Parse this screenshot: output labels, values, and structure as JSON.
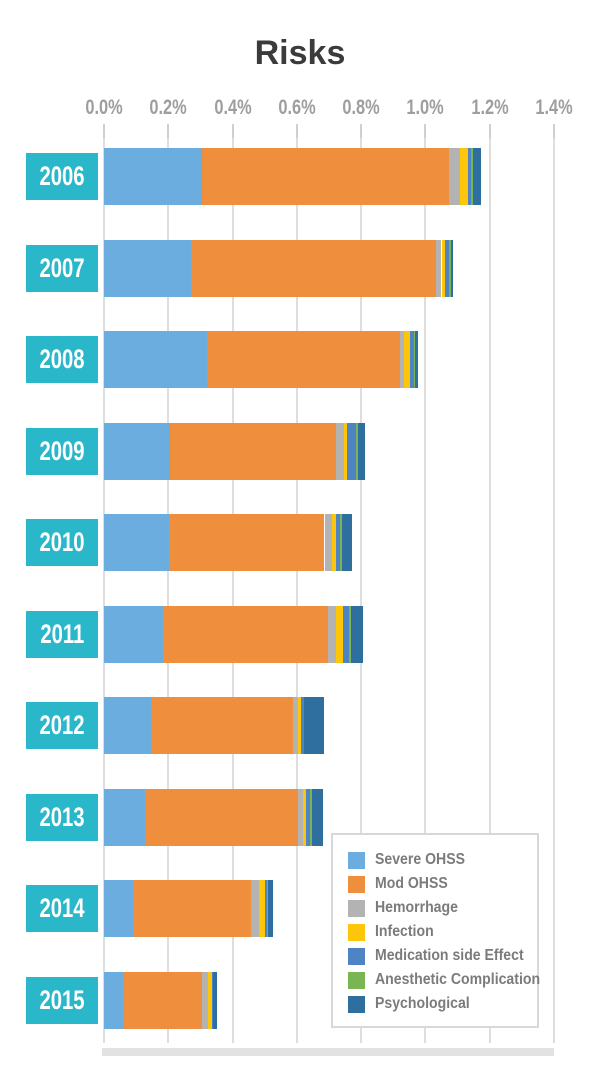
{
  "title": "Risks",
  "axis": {
    "unit": "%",
    "min": 0,
    "max": 1.4,
    "step": 0.2,
    "tick_labels": [
      "0.0%",
      "0.2%",
      "0.4%",
      "0.6%",
      "0.8%",
      "1.0%",
      "1.2%",
      "1.4%"
    ]
  },
  "chart_data": {
    "type": "bar",
    "orientation": "horizontal",
    "stacked": true,
    "title": "Risks",
    "unit": "percent",
    "xlim": [
      0,
      1.4
    ],
    "grid": true,
    "legend_position": "bottom-right",
    "categories": [
      "2006",
      "2007",
      "2008",
      "2009",
      "2010",
      "2011",
      "2012",
      "2013",
      "2014",
      "2015"
    ],
    "series": [
      {
        "name": "Severe OHSS",
        "color": "#6badde",
        "values": [
          0.305,
          0.27,
          0.32,
          0.204,
          0.201,
          0.185,
          0.147,
          0.126,
          0.09,
          0.062
        ]
      },
      {
        "name": "Mod OHSS",
        "color": "#ef8f3e",
        "values": [
          0.769,
          0.763,
          0.6,
          0.519,
          0.485,
          0.511,
          0.44,
          0.476,
          0.367,
          0.242
        ]
      },
      {
        "name": "Hemorrhage",
        "color": "#b3b3b3",
        "values": [
          0.033,
          0.017,
          0.012,
          0.025,
          0.022,
          0.025,
          0.017,
          0.017,
          0.024,
          0.019
        ]
      },
      {
        "name": "Infection",
        "color": "#fdc60b",
        "values": [
          0.024,
          0.012,
          0.019,
          0.008,
          0.014,
          0.023,
          0.008,
          0.01,
          0.019,
          0.012
        ]
      },
      {
        "name": "Medication side Effect",
        "color": "#4e84c4",
        "values": [
          0.012,
          0.011,
          0.012,
          0.027,
          0.013,
          0.017,
          0.009,
          0.012,
          0.008,
          0.004
        ]
      },
      {
        "name": "Anesthetic Complication",
        "color": "#7ab553",
        "values": [
          0.006,
          0.006,
          0.005,
          0.006,
          0.006,
          0.006,
          0.002,
          0.006,
          0.002,
          0.0
        ]
      },
      {
        "name": "Psychological",
        "color": "#2f6f9f",
        "values": [
          0.023,
          0.006,
          0.008,
          0.022,
          0.03,
          0.04,
          0.06,
          0.035,
          0.015,
          0.012
        ]
      }
    ],
    "totals": [
      1.172,
      1.085,
      0.976,
      0.811,
      0.771,
      0.807,
      0.683,
      0.682,
      0.525,
      0.351
    ]
  },
  "colors": {
    "year_box": "#2ab7c9",
    "year_text": "#ffffff",
    "title": "#3b3b3b",
    "axis_label": "#9e9e9e",
    "tick": "#cfcfcf",
    "gridline": "#dedede",
    "baseline": "#e2e2e2",
    "legend_border": "#d8d8d8",
    "legend_text": "#7b7b7b",
    "background": "#ffffff"
  }
}
